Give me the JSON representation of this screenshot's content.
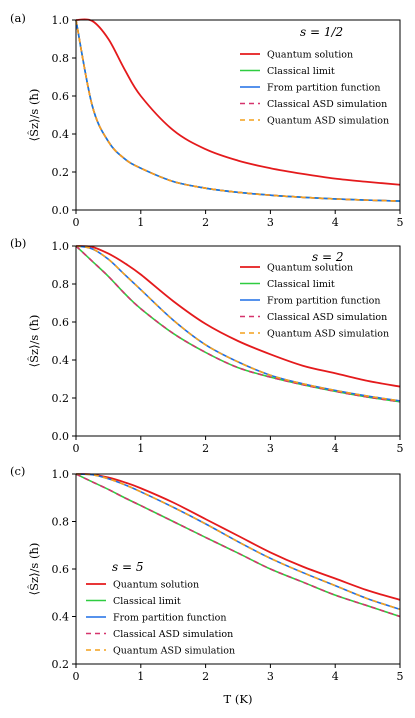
{
  "colors": {
    "quantum": "#e41a1c",
    "classical": "#2ecc40",
    "partition": "#1f6fe5",
    "classical_asd": "#d6336c",
    "quantum_asd": "#f4a01c"
  },
  "xlabel": "T (K)",
  "ylabel": "⟨Ŝz⟩/s (ħ)",
  "chart_data": [
    {
      "type": "line",
      "panel": "(a)",
      "s_label": "s = 1/2",
      "xlim": [
        0,
        5
      ],
      "ylim": [
        0,
        1
      ],
      "xticks": [
        "0",
        "1",
        "2",
        "3",
        "4",
        "5"
      ],
      "yticks": [
        "0.0",
        "0.2",
        "0.4",
        "0.6",
        "0.8",
        "1.0"
      ],
      "legend_position": "top-right",
      "x": [
        0,
        0.25,
        0.5,
        0.75,
        1,
        1.5,
        2,
        2.5,
        3,
        3.5,
        4,
        4.5,
        5
      ],
      "series": [
        {
          "name": "Quantum solution",
          "style": "solid",
          "values": [
            1.0,
            0.995,
            0.9,
            0.74,
            0.6,
            0.42,
            0.32,
            0.26,
            0.22,
            0.19,
            0.165,
            0.148,
            0.133
          ]
        },
        {
          "name": "Classical limit",
          "style": "solid",
          "values": [
            1.0,
            0.55,
            0.36,
            0.27,
            0.22,
            0.15,
            0.115,
            0.093,
            0.078,
            0.067,
            0.058,
            0.052,
            0.047
          ]
        },
        {
          "name": "From partition function",
          "style": "solid",
          "values": [
            1.0,
            0.55,
            0.36,
            0.27,
            0.22,
            0.15,
            0.115,
            0.093,
            0.078,
            0.067,
            0.058,
            0.052,
            0.047
          ]
        },
        {
          "name": "Classical ASD simulation",
          "style": "dashed",
          "values": [
            1.0,
            0.55,
            0.36,
            0.27,
            0.22,
            0.15,
            0.115,
            0.093,
            0.078,
            0.067,
            0.058,
            0.052,
            0.047
          ]
        },
        {
          "name": "Quantum ASD simulation",
          "style": "dashed",
          "values": [
            1.0,
            0.55,
            0.36,
            0.27,
            0.22,
            0.15,
            0.115,
            0.093,
            0.078,
            0.067,
            0.058,
            0.052,
            0.047
          ]
        }
      ]
    },
    {
      "type": "line",
      "panel": "(b)",
      "s_label": "s = 2",
      "xlim": [
        0,
        5
      ],
      "ylim": [
        0,
        1
      ],
      "xticks": [
        "0",
        "1",
        "2",
        "3",
        "4",
        "5"
      ],
      "yticks": [
        "0.0",
        "0.2",
        "0.4",
        "0.6",
        "0.8",
        "1.0"
      ],
      "legend_position": "top-right",
      "x": [
        0,
        0.25,
        0.5,
        0.75,
        1,
        1.5,
        2,
        2.5,
        3,
        3.5,
        4,
        4.5,
        5
      ],
      "series": [
        {
          "name": "Quantum solution",
          "style": "solid",
          "values": [
            1.0,
            0.995,
            0.96,
            0.91,
            0.85,
            0.71,
            0.59,
            0.5,
            0.43,
            0.37,
            0.33,
            0.29,
            0.26
          ]
        },
        {
          "name": "Classical limit",
          "style": "solid",
          "values": [
            1.0,
            0.92,
            0.84,
            0.75,
            0.67,
            0.54,
            0.44,
            0.36,
            0.31,
            0.27,
            0.235,
            0.205,
            0.18
          ]
        },
        {
          "name": "From partition function",
          "style": "solid",
          "values": [
            1.0,
            0.985,
            0.93,
            0.85,
            0.77,
            0.61,
            0.48,
            0.39,
            0.32,
            0.275,
            0.24,
            0.21,
            0.185
          ]
        },
        {
          "name": "Classical ASD simulation",
          "style": "dashed",
          "values": [
            1.0,
            0.92,
            0.84,
            0.75,
            0.67,
            0.54,
            0.44,
            0.36,
            0.31,
            0.27,
            0.235,
            0.205,
            0.18
          ]
        },
        {
          "name": "Quantum ASD simulation",
          "style": "dashed",
          "values": [
            1.0,
            0.985,
            0.93,
            0.85,
            0.77,
            0.61,
            0.48,
            0.39,
            0.32,
            0.275,
            0.24,
            0.21,
            0.185
          ]
        }
      ]
    },
    {
      "type": "line",
      "panel": "(c)",
      "s_label": "s = 5",
      "xlim": [
        0,
        5
      ],
      "ylim": [
        0.2,
        1
      ],
      "xticks": [
        "0",
        "1",
        "2",
        "3",
        "4",
        "5"
      ],
      "yticks": [
        "0.2",
        "0.4",
        "0.6",
        "0.8",
        "1.0"
      ],
      "legend_position": "lower-left",
      "x": [
        0,
        0.25,
        0.5,
        0.75,
        1,
        1.5,
        2,
        2.5,
        3,
        3.5,
        4,
        4.5,
        5
      ],
      "series": [
        {
          "name": "Quantum solution",
          "style": "solid",
          "values": [
            1.0,
            0.998,
            0.985,
            0.965,
            0.94,
            0.88,
            0.81,
            0.74,
            0.67,
            0.61,
            0.56,
            0.51,
            0.47
          ]
        },
        {
          "name": "Classical limit",
          "style": "solid",
          "values": [
            1.0,
            0.967,
            0.935,
            0.9,
            0.867,
            0.8,
            0.733,
            0.667,
            0.6,
            0.545,
            0.49,
            0.445,
            0.4
          ]
        },
        {
          "name": "From partition function",
          "style": "solid",
          "values": [
            1.0,
            0.997,
            0.98,
            0.955,
            0.925,
            0.86,
            0.79,
            0.715,
            0.645,
            0.585,
            0.53,
            0.475,
            0.43
          ]
        },
        {
          "name": "Classical ASD simulation",
          "style": "dashed",
          "values": [
            1.0,
            0.967,
            0.935,
            0.9,
            0.867,
            0.8,
            0.733,
            0.667,
            0.6,
            0.545,
            0.49,
            0.445,
            0.4
          ]
        },
        {
          "name": "Quantum ASD simulation",
          "style": "dashed",
          "values": [
            1.0,
            0.997,
            0.98,
            0.955,
            0.925,
            0.86,
            0.79,
            0.715,
            0.645,
            0.585,
            0.53,
            0.475,
            0.43
          ]
        }
      ]
    }
  ]
}
